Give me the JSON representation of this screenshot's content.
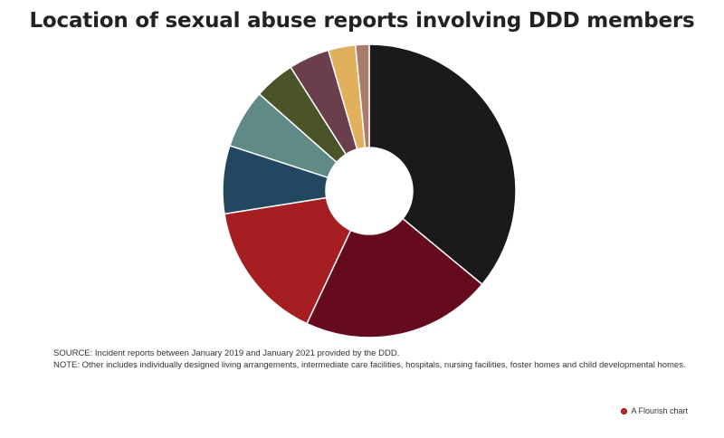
{
  "title": "Location of sexual abuse reports involving DDD members",
  "chart_data": {
    "type": "pie",
    "donut": true,
    "title": "Location of sexual abuse reports involving DDD members",
    "slices": [
      {
        "value": 36.0,
        "color": "#1b191b"
      },
      {
        "value": 21.0,
        "color": "#660a1e"
      },
      {
        "value": 15.5,
        "color": "#a51e22"
      },
      {
        "value": 7.5,
        "color": "#234760"
      },
      {
        "value": 6.5,
        "color": "#608a86"
      },
      {
        "value": 4.5,
        "color": "#4a5428"
      },
      {
        "value": 4.5,
        "color": "#6b3e4c"
      },
      {
        "value": 3.0,
        "color": "#e0b05c"
      },
      {
        "value": 1.5,
        "color": "#a87c6c"
      }
    ]
  },
  "footer": {
    "source": "SOURCE: Incident reports between January 2019 and January 2021 provided by the DDD.",
    "note": "NOTE: Other includes individually designed living arrangements, intermediate care facilities, hospitals, nursing facilities, foster homes and child developmental homes."
  },
  "credit": {
    "label": "A Flourish chart",
    "dot_color": "#d0202a"
  }
}
